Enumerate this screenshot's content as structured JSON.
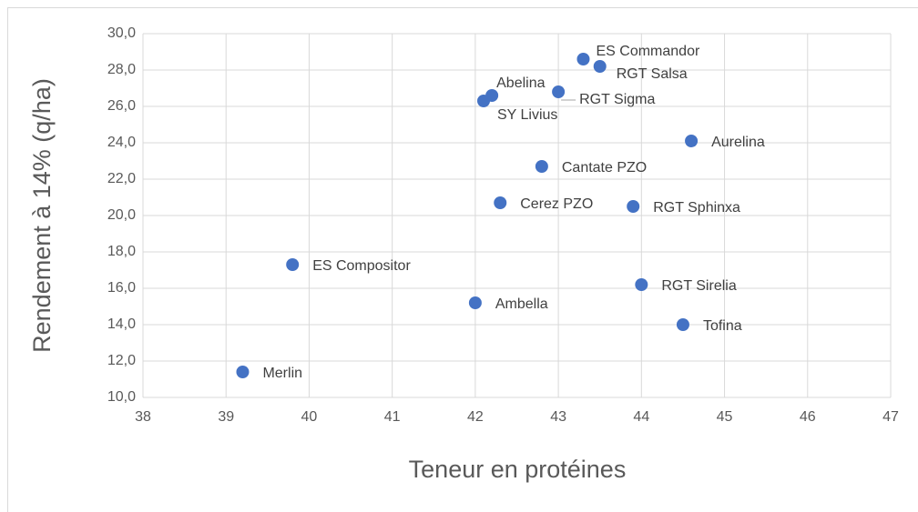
{
  "chart_data": {
    "type": "scatter",
    "x_label": "Teneur en protéines",
    "y_label": "Rendement à 14% (q/ha)",
    "point_labels": [
      "ES Commandor",
      "RGT Salsa",
      "Abelina",
      "SY Livius",
      "RGT Sigma",
      "Aurelina",
      "Cantate PZO",
      "Cerez PZO",
      "RGT Sphinxa",
      "ES Compositor",
      "RGT Sirelia",
      "Ambella",
      "Tofina",
      "Merlin"
    ],
    "x": [
      43.3,
      43.5,
      42.2,
      42.1,
      43.0,
      44.6,
      42.8,
      42.3,
      43.9,
      39.8,
      44.0,
      42.0,
      44.5,
      39.2
    ],
    "values": [
      28.6,
      28.2,
      26.6,
      26.3,
      26.8,
      24.1,
      22.7,
      20.7,
      20.5,
      17.3,
      16.2,
      15.2,
      14.0,
      11.4
    ],
    "color": "#4472c4",
    "xlim": [
      38,
      47
    ],
    "xticks": [
      38,
      39,
      40,
      41,
      42,
      43,
      44,
      45,
      46,
      47
    ],
    "ylim": [
      10,
      30
    ],
    "yticks": [
      {
        "value": 10,
        "label": "10,0"
      },
      {
        "value": 12,
        "label": "12,0"
      },
      {
        "value": 14,
        "label": "14,0"
      },
      {
        "value": 16,
        "label": "16,0"
      },
      {
        "value": 18,
        "label": "18,0"
      },
      {
        "value": 20,
        "label": "20,0"
      },
      {
        "value": 22,
        "label": "22,0"
      },
      {
        "value": 24,
        "label": "24,0"
      },
      {
        "value": 26,
        "label": "26,0"
      },
      {
        "value": 28,
        "label": "28,0"
      },
      {
        "value": 30,
        "label": "30,0"
      }
    ],
    "grid": true
  }
}
